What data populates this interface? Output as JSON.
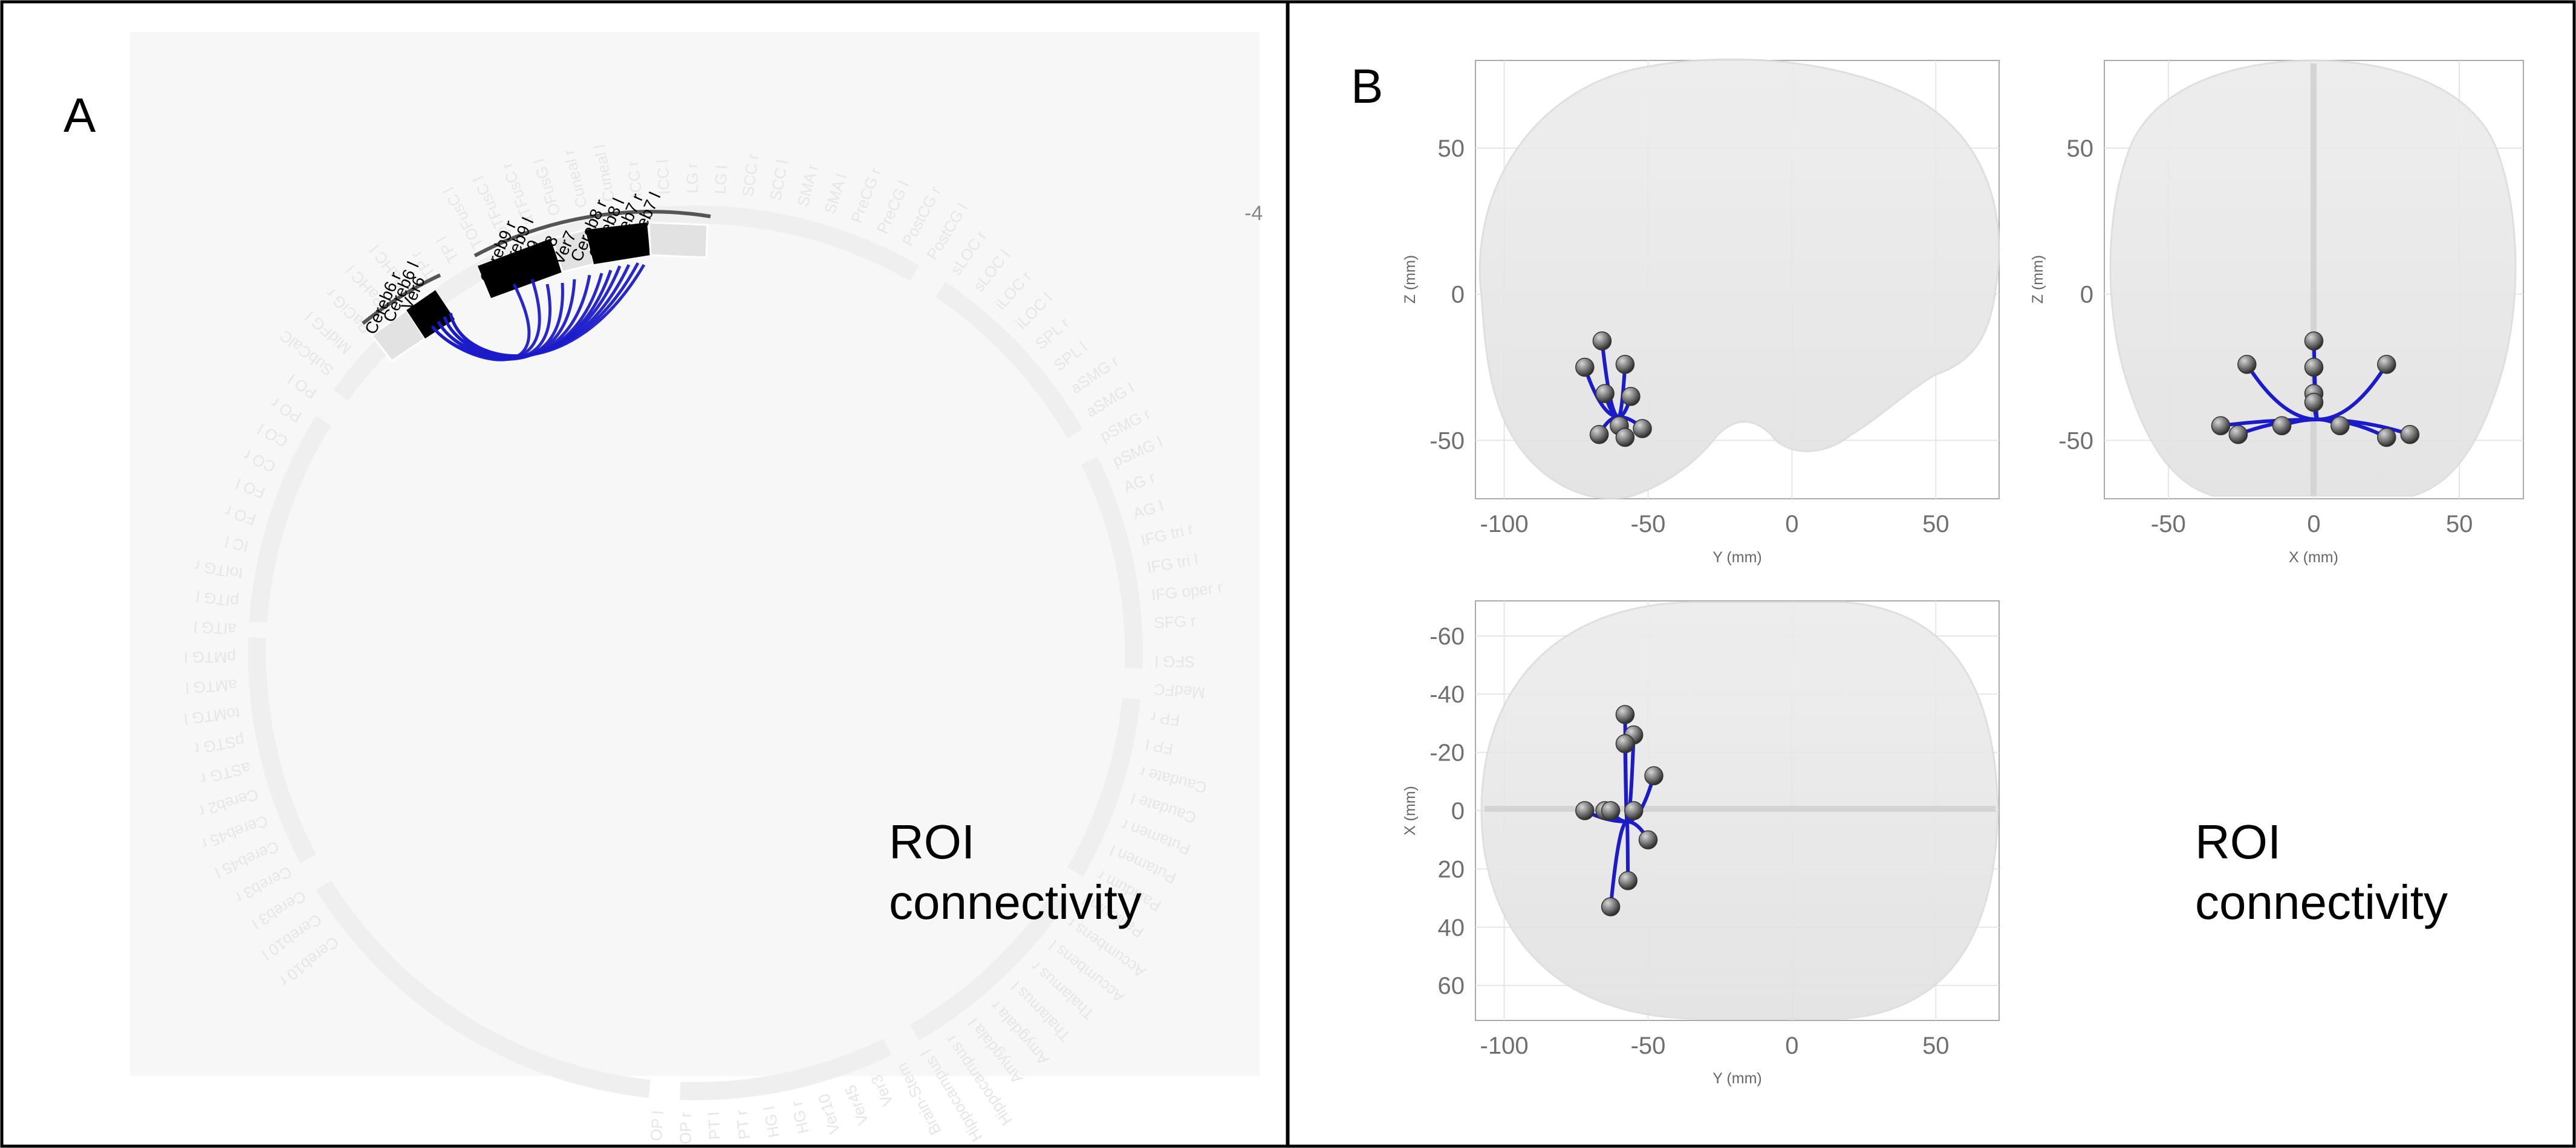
{
  "panel_a": {
    "letter": "A",
    "caption_line1": "ROI",
    "caption_line2": "connectivity",
    "stray_label": "-4",
    "highlight_labels": [
      "Cereb6 r",
      "Cereb6 l",
      "Ver6",
      "Cereb9 r",
      "Cereb9 l",
      "Ver9",
      "Ver8",
      "Ver7",
      "Cereb8 r",
      "Cereb8 l",
      "Cereb7 r",
      "Cereb7 l"
    ],
    "ring_labels": [
      "Cereb10 r",
      "Cereb10 l",
      "Cereb3 l",
      "Cereb3 r",
      "Cereb45 l",
      "Cereb45 r",
      "Cereb2 r",
      "aSTG r",
      "pSTG r",
      "toMTG l",
      "aMTG l",
      "pMTG l",
      "aITG l",
      "pITG l",
      "toITG r",
      "IC l",
      "FO r",
      "FO l",
      "CO r",
      "CO l",
      "PO r",
      "PO l",
      "SubCalC",
      "MidFG l",
      "PaCiG r",
      "aPaHC l",
      "pPaHC l",
      "TP r",
      "TP l",
      "TOFusC l",
      "pTFusC l",
      "aTFusC r",
      "OFusG l",
      "Cuneal r",
      "Cuneal l",
      "ICC r",
      "ICC l",
      "LG r",
      "LG l",
      "SCC r",
      "SCC l",
      "SMA r",
      "SMA l",
      "PreCG r",
      "PreCG l",
      "PostCG r",
      "PostCG l",
      "sLOC r",
      "sLOC l",
      "iLOC r",
      "iLOC l",
      "SPL r",
      "SPL l",
      "aSMG r",
      "aSMG l",
      "pSMG r",
      "pSMG l",
      "AG r",
      "AG l",
      "IFG tri r",
      "IFG tri l",
      "IFG oper r",
      "SFG r",
      "SFG l",
      "MedFC",
      "FP r",
      "FP l",
      "Caudate r",
      "Caudate l",
      "Putamen r",
      "Putamen l",
      "Pallidum r",
      "Pallidum l",
      "Accumbens r",
      "Accumbens l",
      "Thalamus r",
      "Thalamus l",
      "Amygdala r",
      "Amygdala l",
      "Hippocampus r",
      "Hippocampus l",
      "Brain-Stem",
      "Ver3",
      "Ver45",
      "Ver10",
      "HG r",
      "HG l",
      "PT r",
      "PT l",
      "OP r",
      "OP l"
    ]
  },
  "panel_b": {
    "letter": "B",
    "caption_line1": "ROI",
    "caption_line2": "connectivity",
    "sagittal": {
      "xlabel": "Y (mm)",
      "ylabel": "Z (mm)",
      "xticks": [
        "-100",
        "-50",
        "0",
        "50"
      ],
      "yticks": [
        "50",
        "0",
        "-50"
      ],
      "xlim": [
        -110,
        72
      ],
      "ylim": [
        -70,
        80
      ],
      "nodes": [
        [
          -66,
          -16
        ],
        [
          -58,
          -24
        ],
        [
          -72,
          -25
        ],
        [
          -65,
          -34
        ],
        [
          -56,
          -35
        ],
        [
          -60,
          -45
        ],
        [
          -52,
          -46
        ],
        [
          -67,
          -48
        ],
        [
          -58,
          -49
        ]
      ]
    },
    "coronal": {
      "xlabel": "X (mm)",
      "ylabel": "Z (mm)",
      "xticks": [
        "-50",
        "0",
        "50"
      ],
      "yticks": [
        "50",
        "0",
        "-50"
      ],
      "xlim": [
        -72,
        72
      ],
      "ylim": [
        -70,
        80
      ],
      "nodes": [
        [
          0,
          -16
        ],
        [
          -23,
          -24
        ],
        [
          25,
          -24
        ],
        [
          0,
          -25
        ],
        [
          0,
          -34
        ],
        [
          0,
          -37
        ],
        [
          -11,
          -45
        ],
        [
          9,
          -45
        ],
        [
          -32,
          -45
        ],
        [
          -26,
          -48
        ],
        [
          25,
          -49
        ],
        [
          33,
          -48
        ]
      ]
    },
    "axial": {
      "xlabel": "Y (mm)",
      "ylabel": "X (mm)",
      "xticks": [
        "-100",
        "-50",
        "0",
        "50"
      ],
      "yticks": [
        "-60",
        "-40",
        "-20",
        "0",
        "20",
        "40",
        "60"
      ],
      "xlim": [
        -110,
        72
      ],
      "ylim": [
        -72,
        72
      ],
      "nodes": [
        [
          -58,
          -33
        ],
        [
          -55,
          -26
        ],
        [
          -58,
          -23
        ],
        [
          -48,
          -12
        ],
        [
          -72,
          0
        ],
        [
          -65,
          0
        ],
        [
          -63,
          0
        ],
        [
          -55,
          0
        ],
        [
          -50,
          10
        ],
        [
          -57,
          24
        ],
        [
          -63,
          33
        ]
      ]
    }
  },
  "colors": {
    "connection": "#1b1bc9",
    "node": "#6f6f6f",
    "brain": "#e9e9e9"
  }
}
